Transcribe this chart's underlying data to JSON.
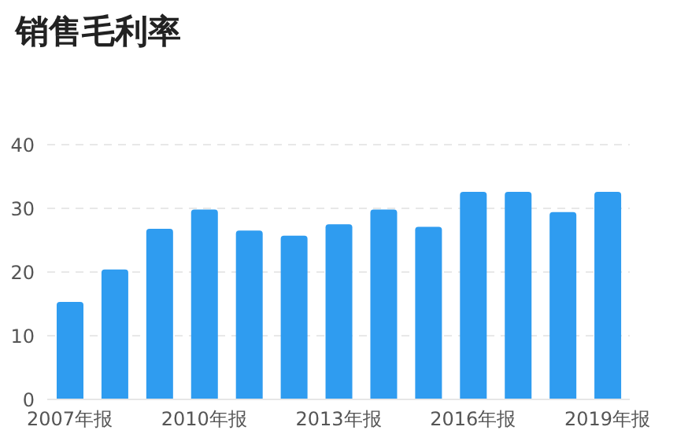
{
  "chart_data": {
    "type": "bar",
    "title": "销售毛利率",
    "categories": [
      "2007年报",
      null,
      null,
      "2010年报",
      null,
      null,
      "2013年报",
      null,
      null,
      "2016年报",
      null,
      null,
      "2019年报"
    ],
    "values": [
      15.3,
      20.4,
      26.8,
      29.8,
      26.5,
      25.7,
      27.5,
      29.8,
      27.1,
      32.6,
      32.6,
      29.4,
      32.6
    ],
    "color": "#2f9cf0",
    "ylim": [
      0,
      40
    ],
    "yticks": [
      0,
      10,
      20,
      30,
      40
    ],
    "grid": "y"
  }
}
